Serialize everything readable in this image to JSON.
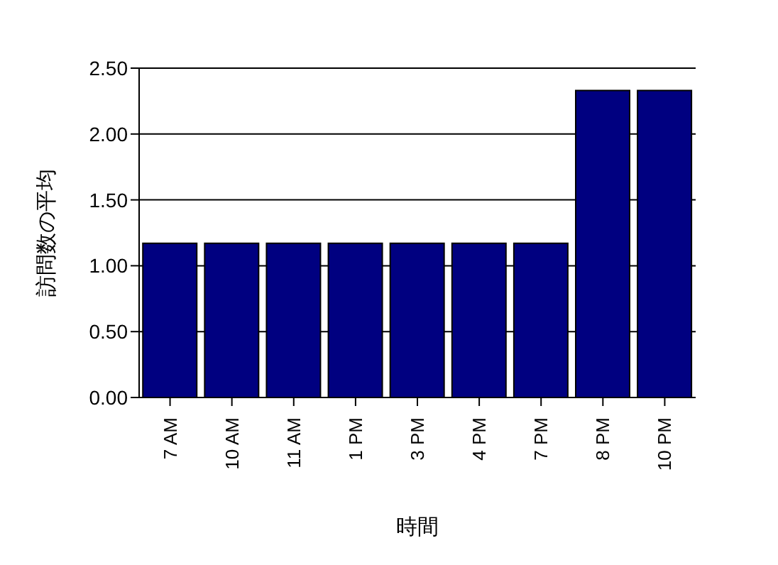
{
  "chart_data": {
    "type": "bar",
    "xlabel": "時間",
    "ylabel": "訪問数の平均",
    "categories": [
      "7 AM",
      "10 AM",
      "11 AM",
      "1 PM",
      "3 PM",
      "4 PM",
      "7 PM",
      "8 PM",
      "10 PM"
    ],
    "values": [
      1.17,
      1.17,
      1.17,
      1.17,
      1.17,
      1.17,
      1.17,
      2.33,
      2.33
    ],
    "color": "#000080",
    "ylim": [
      0,
      2.5
    ],
    "yticks": [
      {
        "value": 0,
        "label": "0.00"
      },
      {
        "value": 0.5,
        "label": "0.50"
      },
      {
        "value": 1,
        "label": "1.00"
      },
      {
        "value": 1.5,
        "label": "1.50"
      },
      {
        "value": 2,
        "label": "2.00"
      },
      {
        "value": 2.5,
        "label": "2.50"
      }
    ],
    "grid": "y",
    "legend": false
  }
}
